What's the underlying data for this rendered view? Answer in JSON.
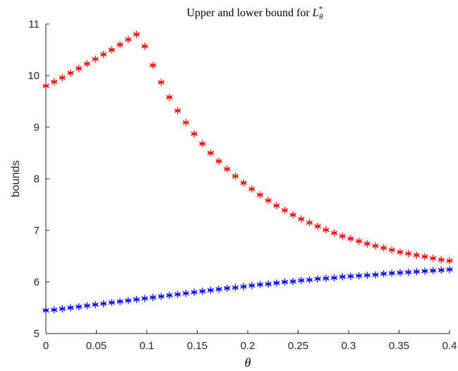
{
  "chart_data": {
    "type": "scatter",
    "title_text": "Upper and lower bound for ",
    "title_math_base": "L",
    "title_math_sup": "*",
    "title_math_sub": "θ",
    "xlabel": "θ",
    "ylabel": "bounds",
    "xlim": [
      0,
      0.4
    ],
    "ylim": [
      5,
      11
    ],
    "x_ticks": [
      "0",
      "0.05",
      "0.1",
      "0.15",
      "0.2",
      "0.25",
      "0.3",
      "0.35",
      "0.4"
    ],
    "y_ticks": [
      "5",
      "6",
      "7",
      "8",
      "9",
      "10",
      "11"
    ],
    "marker": "*",
    "grid": false,
    "legend": false,
    "x": [
      0,
      0.00816,
      0.01633,
      0.02449,
      0.03265,
      0.04082,
      0.04898,
      0.05714,
      0.06531,
      0.07347,
      0.08163,
      0.0898,
      0.09796,
      0.10612,
      0.11429,
      0.12245,
      0.13061,
      0.13878,
      0.14694,
      0.1551,
      0.16327,
      0.17143,
      0.17959,
      0.18776,
      0.19592,
      0.20408,
      0.21224,
      0.22041,
      0.22857,
      0.23673,
      0.2449,
      0.25306,
      0.26122,
      0.26939,
      0.27755,
      0.28571,
      0.29388,
      0.30204,
      0.3102,
      0.31837,
      0.32653,
      0.33469,
      0.34286,
      0.35102,
      0.35918,
      0.36735,
      0.37551,
      0.38367,
      0.39184,
      0.4
    ],
    "series": [
      {
        "color": "#ff0000",
        "values": [
          9.8,
          9.88,
          9.96,
          10.05,
          10.14,
          10.23,
          10.32,
          10.41,
          10.5,
          10.6,
          10.7,
          10.8,
          10.57,
          10.2,
          9.87,
          9.58,
          9.32,
          9.09,
          8.87,
          8.68,
          8.5,
          8.34,
          8.19,
          8.05,
          7.92,
          7.8,
          7.69,
          7.58,
          7.48,
          7.39,
          7.3,
          7.22,
          7.15,
          7.08,
          7.01,
          6.95,
          6.89,
          6.84,
          6.79,
          6.74,
          6.7,
          6.66,
          6.62,
          6.58,
          6.55,
          6.52,
          6.49,
          6.46,
          6.43,
          6.41
        ]
      },
      {
        "color": "#0000ff",
        "values": [
          5.45,
          5.46,
          5.48,
          5.5,
          5.52,
          5.54,
          5.56,
          5.58,
          5.6,
          5.62,
          5.64,
          5.66,
          5.68,
          5.7,
          5.72,
          5.74,
          5.76,
          5.78,
          5.8,
          5.82,
          5.84,
          5.86,
          5.88,
          5.89,
          5.91,
          5.93,
          5.95,
          5.96,
          5.98,
          6.0,
          6.01,
          6.03,
          6.04,
          6.06,
          6.07,
          6.08,
          6.1,
          6.11,
          6.12,
          6.13,
          6.14,
          6.16,
          6.17,
          6.18,
          6.19,
          6.2,
          6.21,
          6.22,
          6.23,
          6.24
        ]
      }
    ]
  }
}
